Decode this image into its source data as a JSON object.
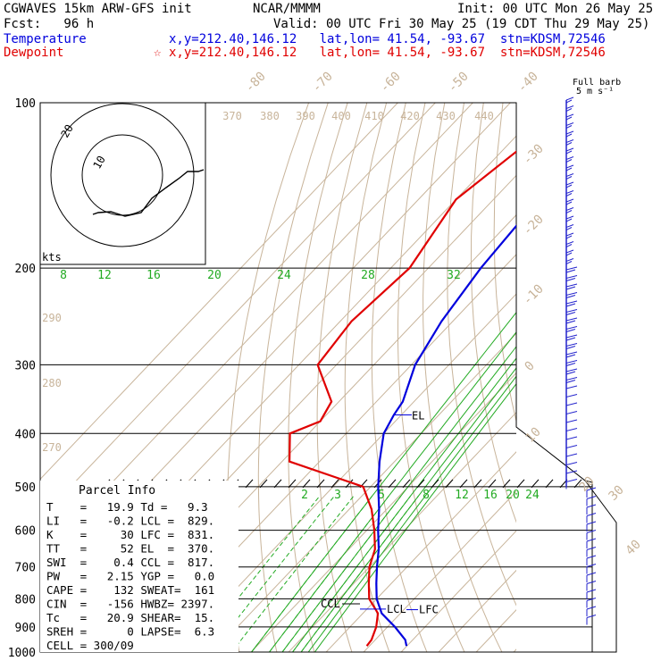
{
  "header": {
    "model": "CGWAVES 15km ARW-GFS init",
    "center": "NCAR/MMMM",
    "init": "Init: 00 UTC Mon 26 May 25",
    "fcst": "Fcst:   96 h",
    "valid": "Valid: 00 UTC Fri 30 May 25 (19 CDT Thu 29 May 25)",
    "temp_label": "Temperature",
    "temp_coords": "x,y=212.40,146.12   lat,lon= 41.54, -93.67  stn=KDSM,72546",
    "dew_label": "Dewpoint",
    "dew_coords": "x,y=212.40,146.12   lat,lon= 41.54, -93.67  stn=KDSM,72546",
    "dew_star": "☆",
    "barb_title_1": "Full barb",
    "barb_title_2": "5 m s⁻¹"
  },
  "colors": {
    "temperature": "#0000dd",
    "dewpoint": "#e00000",
    "isotherm": "#c8b49a",
    "mixing_ratio": "#22aa22",
    "barb": "#2222cc"
  },
  "chart_data": {
    "type": "line",
    "title": "",
    "pressure_levels": [
      100,
      200,
      300,
      400,
      500,
      600,
      700,
      800,
      900,
      1000
    ],
    "isotherm_labels": [
      "-80",
      "-70",
      "-60",
      "-50",
      "-40",
      "-30",
      "-20",
      "-10",
      "0",
      "10",
      "20",
      "30",
      "40"
    ],
    "theta_labels": [
      "370",
      "380",
      "390",
      "400",
      "410",
      "420",
      "430",
      "440",
      "290",
      "280",
      "270"
    ],
    "mixing_ratio_labels_upper": [
      "8",
      "12",
      "16",
      "20",
      "24",
      "28",
      "32"
    ],
    "mixing_ratio_labels_lower": [
      "2",
      "3",
      "5",
      "8",
      "12",
      "16",
      "20",
      "24"
    ],
    "series": [
      {
        "name": "Temperature",
        "color": "#0000dd",
        "points": [
          [
            100,
            -62
          ],
          [
            150,
            -58
          ],
          [
            200,
            -56
          ],
          [
            250,
            -53
          ],
          [
            300,
            -49
          ],
          [
            350,
            -43
          ],
          [
            370,
            -42
          ],
          [
            400,
            -40
          ],
          [
            450,
            -34
          ],
          [
            500,
            -28
          ],
          [
            550,
            -22
          ],
          [
            600,
            -17
          ],
          [
            650,
            -12
          ],
          [
            700,
            -8
          ],
          [
            750,
            -4
          ],
          [
            800,
            0
          ],
          [
            850,
            5
          ],
          [
            900,
            12
          ],
          [
            950,
            18
          ],
          [
            975,
            19.9
          ]
        ]
      },
      {
        "name": "Dewpoint",
        "color": "#e00000",
        "points": [
          [
            100,
            -72
          ],
          [
            150,
            -80
          ],
          [
            200,
            -75
          ],
          [
            250,
            -77
          ],
          [
            300,
            -75
          ],
          [
            350,
            -62
          ],
          [
            380,
            -60
          ],
          [
            400,
            -65
          ],
          [
            450,
            -58
          ],
          [
            500,
            -32
          ],
          [
            550,
            -24
          ],
          [
            600,
            -18
          ],
          [
            650,
            -13
          ],
          [
            700,
            -10
          ],
          [
            750,
            -6
          ],
          [
            800,
            -2
          ],
          [
            850,
            4
          ],
          [
            900,
            7
          ],
          [
            950,
            9
          ],
          [
            975,
            9.3
          ]
        ]
      }
    ],
    "markers": [
      {
        "label": "EL",
        "pressure": 370
      },
      {
        "label": "CCL",
        "pressure": 817
      },
      {
        "label": "LCL",
        "pressure": 829
      },
      {
        "label": "LFC",
        "pressure": 831
      }
    ]
  },
  "hodograph": {
    "unit_label": "kts",
    "ring_labels": [
      "20",
      "10"
    ]
  },
  "parcel": {
    "title": "Parcel Info",
    "rows": [
      "T    =   19.9 Td =   9.3",
      "LI   =   -0.2 LCL =  829.",
      "K    =     30 LFC =  831.",
      "TT   =     52 EL  =  370.",
      "SWI  =    0.4 CCL =  817.",
      "PW   =   2.15 YGP =   0.0",
      "CAPE =    132 SWEAT=  161",
      "CIN  =   -156 HWBZ= 2397.",
      "Tc   =   20.9 SHEAR=  15.",
      "SREH =      0 LAPSE=  6.3",
      "CELL = 300/09"
    ]
  }
}
